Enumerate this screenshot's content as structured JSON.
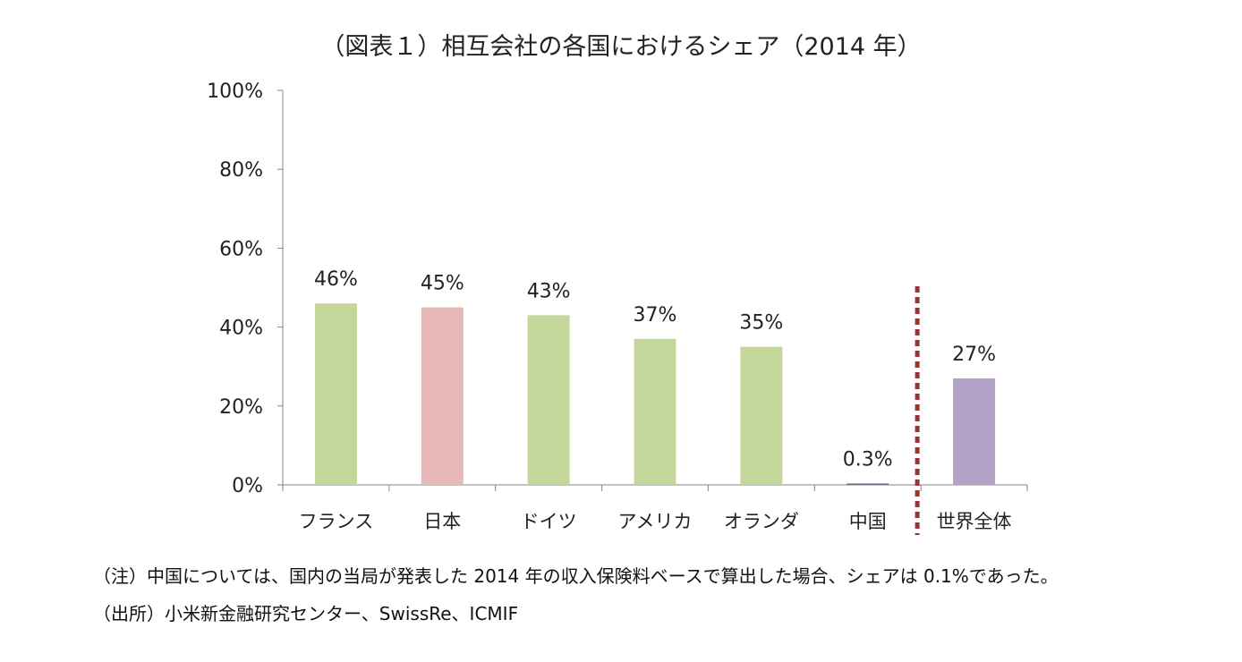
{
  "chart_data": {
    "type": "bar",
    "title": "（図表１）相互会社の各国におけるシェア（2014 年）",
    "categories": [
      "フランス",
      "日本",
      "ドイツ",
      "アメリカ",
      "オランダ",
      "中国",
      "世界全体"
    ],
    "values": [
      46,
      45,
      43,
      37,
      35,
      0.3,
      27
    ],
    "data_labels": [
      "46%",
      "45%",
      "43%",
      "37%",
      "35%",
      "0.3%",
      "27%"
    ],
    "colors": [
      "#c4d79b",
      "#e6b9b8",
      "#c4d79b",
      "#c4d79b",
      "#c4d79b",
      "#4f6f8f",
      "#b3a2c7"
    ],
    "ylim": [
      0,
      100
    ],
    "yticks": [
      0,
      20,
      40,
      60,
      80,
      100
    ],
    "ytick_labels": [
      "0%",
      "20%",
      "40%",
      "60%",
      "80%",
      "100%"
    ],
    "xlabel": "",
    "ylabel": "",
    "grid": false,
    "separator": {
      "between": [
        "中国",
        "世界全体"
      ],
      "color": "#953735",
      "style": "dotted"
    }
  },
  "notes": [
    "（注）中国については、国内の当局が発表した 2014 年の収入保険料ベースで算出した場合、シェアは 0.1%であった。",
    "（出所）小米新金融研究センター、SwissRe、ICMIF"
  ]
}
